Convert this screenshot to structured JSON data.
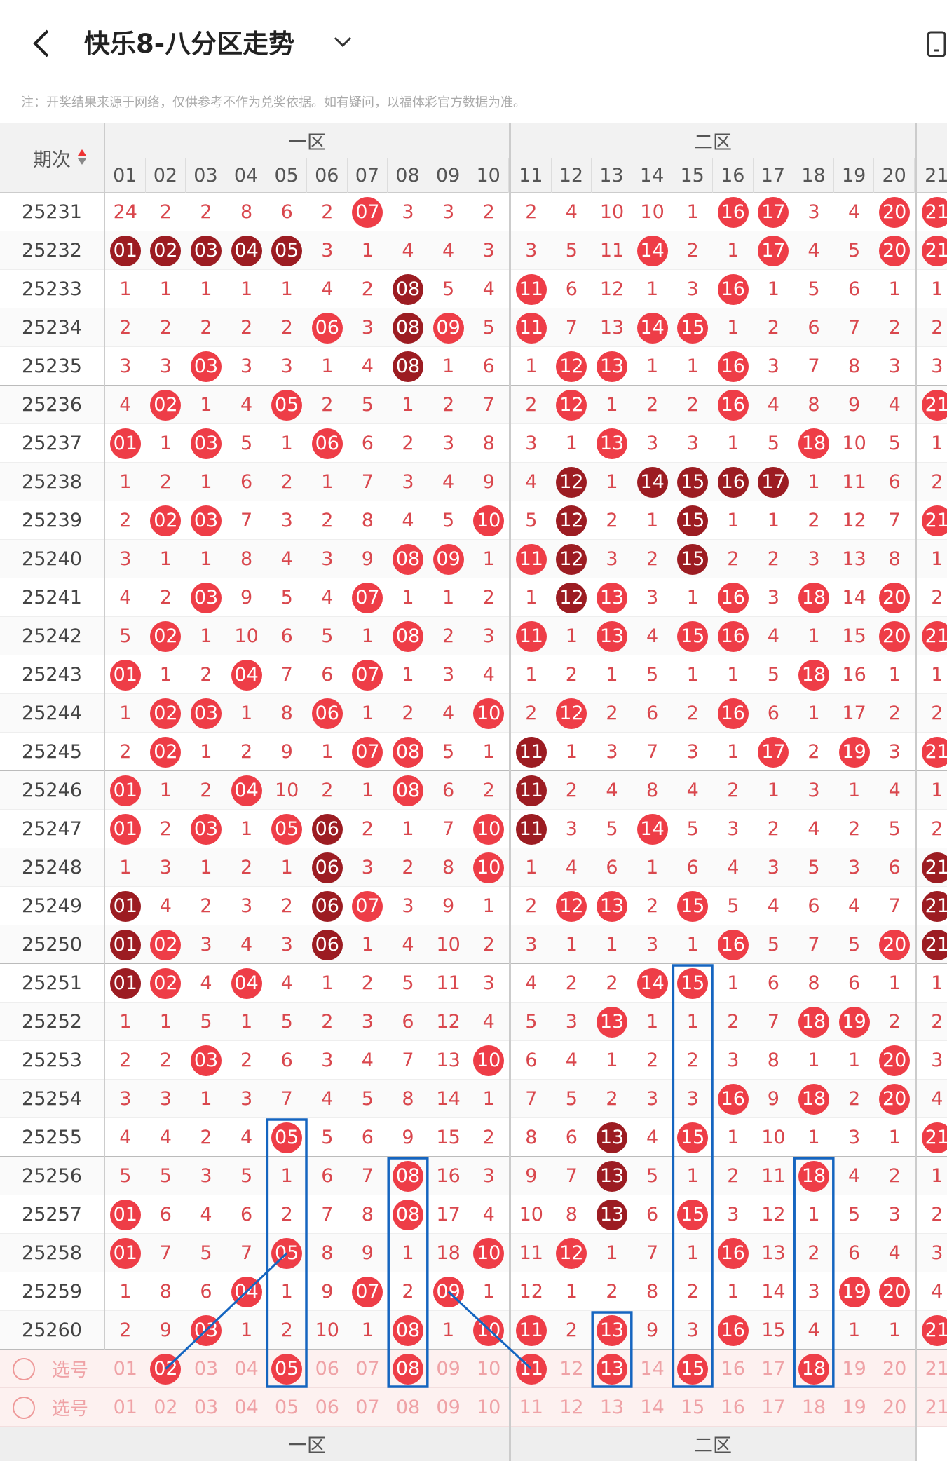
{
  "header": {
    "title": "快乐8-八分区走势",
    "note": "注：开奖结果来源于网络，仅供参考不作为兑奖依据。如有疑问，以福体彩官方数据为准。"
  },
  "table": {
    "period_label": "期次",
    "zones": [
      "一区",
      "二区"
    ],
    "numbers": [
      "01",
      "02",
      "03",
      "04",
      "05",
      "06",
      "07",
      "08",
      "09",
      "10",
      "11",
      "12",
      "13",
      "14",
      "15",
      "16",
      "17",
      "18",
      "19",
      "20",
      "21"
    ],
    "colors": {
      "hit": "#ee3d47",
      "dark": "#9c1c22",
      "miss": "#d9474d",
      "pick_text": "#efa2a6"
    },
    "rows": [
      {
        "period": "25231",
        "cells": [
          "24",
          "2",
          "2",
          "8",
          "6",
          "2",
          "07",
          "3",
          "3",
          "2",
          "2",
          "4",
          "10",
          "10",
          "1",
          "16",
          "17",
          "3",
          "4",
          "20",
          "21"
        ],
        "hit": [
          6,
          15,
          16,
          19,
          20
        ],
        "dark": []
      },
      {
        "period": "25232",
        "cells": [
          "01",
          "02",
          "03",
          "04",
          "05",
          "3",
          "1",
          "4",
          "4",
          "3",
          "3",
          "5",
          "11",
          "14",
          "2",
          "1",
          "17",
          "4",
          "5",
          "20",
          "21"
        ],
        "hit": [
          0,
          1,
          2,
          3,
          4,
          13,
          16,
          19,
          20
        ],
        "dark": [
          0,
          1,
          2,
          3,
          4
        ]
      },
      {
        "period": "25233",
        "cells": [
          "1",
          "1",
          "1",
          "1",
          "1",
          "4",
          "2",
          "08",
          "5",
          "4",
          "11",
          "6",
          "12",
          "1",
          "3",
          "16",
          "1",
          "5",
          "6",
          "1",
          "1"
        ],
        "hit": [
          7,
          10,
          15
        ],
        "dark": [
          7
        ]
      },
      {
        "period": "25234",
        "cells": [
          "2",
          "2",
          "2",
          "2",
          "2",
          "06",
          "3",
          "08",
          "09",
          "5",
          "11",
          "7",
          "13",
          "14",
          "15",
          "1",
          "2",
          "6",
          "7",
          "2",
          "2"
        ],
        "hit": [
          5,
          7,
          8,
          10,
          13,
          14
        ],
        "dark": [
          7
        ]
      },
      {
        "period": "25235",
        "cells": [
          "3",
          "3",
          "03",
          "3",
          "3",
          "1",
          "4",
          "08",
          "1",
          "6",
          "1",
          "12",
          "13",
          "1",
          "1",
          "16",
          "3",
          "7",
          "8",
          "3",
          "3"
        ],
        "hit": [
          2,
          7,
          11,
          12,
          15
        ],
        "dark": [
          7
        ]
      },
      {
        "period": "25236",
        "cells": [
          "4",
          "02",
          "1",
          "4",
          "05",
          "2",
          "5",
          "1",
          "2",
          "7",
          "2",
          "12",
          "1",
          "2",
          "2",
          "16",
          "4",
          "8",
          "9",
          "4",
          "21"
        ],
        "hit": [
          1,
          4,
          11,
          15,
          20
        ],
        "dark": []
      },
      {
        "period": "25237",
        "cells": [
          "01",
          "1",
          "03",
          "5",
          "1",
          "06",
          "6",
          "2",
          "3",
          "8",
          "3",
          "1",
          "13",
          "3",
          "3",
          "1",
          "5",
          "18",
          "10",
          "5",
          "1"
        ],
        "hit": [
          0,
          2,
          5,
          12,
          17
        ],
        "dark": []
      },
      {
        "period": "25238",
        "cells": [
          "1",
          "2",
          "1",
          "6",
          "2",
          "1",
          "7",
          "3",
          "4",
          "9",
          "4",
          "12",
          "1",
          "14",
          "15",
          "16",
          "17",
          "1",
          "11",
          "6",
          "2"
        ],
        "hit": [
          11,
          13,
          14,
          15,
          16
        ],
        "dark": [
          11,
          13,
          14,
          15,
          16
        ]
      },
      {
        "period": "25239",
        "cells": [
          "2",
          "02",
          "03",
          "7",
          "3",
          "2",
          "8",
          "4",
          "5",
          "10",
          "5",
          "12",
          "2",
          "1",
          "15",
          "1",
          "1",
          "2",
          "12",
          "7",
          "21"
        ],
        "hit": [
          1,
          2,
          9,
          11,
          14,
          20
        ],
        "dark": [
          11,
          14
        ]
      },
      {
        "period": "25240",
        "cells": [
          "3",
          "1",
          "1",
          "8",
          "4",
          "3",
          "9",
          "08",
          "09",
          "1",
          "11",
          "12",
          "3",
          "2",
          "15",
          "2",
          "2",
          "3",
          "13",
          "8",
          "1"
        ],
        "hit": [
          7,
          8,
          10,
          11,
          14
        ],
        "dark": [
          11,
          14
        ]
      },
      {
        "period": "25241",
        "cells": [
          "4",
          "2",
          "03",
          "9",
          "5",
          "4",
          "07",
          "1",
          "1",
          "2",
          "1",
          "12",
          "13",
          "3",
          "1",
          "16",
          "3",
          "18",
          "14",
          "20",
          "2"
        ],
        "hit": [
          2,
          6,
          11,
          12,
          15,
          17,
          19
        ],
        "dark": [
          11
        ]
      },
      {
        "period": "25242",
        "cells": [
          "5",
          "02",
          "1",
          "10",
          "6",
          "5",
          "1",
          "08",
          "2",
          "3",
          "11",
          "1",
          "13",
          "4",
          "15",
          "16",
          "4",
          "1",
          "15",
          "20",
          "21"
        ],
        "hit": [
          1,
          7,
          10,
          12,
          14,
          15,
          19,
          20
        ],
        "dark": []
      },
      {
        "period": "25243",
        "cells": [
          "01",
          "1",
          "2",
          "04",
          "7",
          "6",
          "07",
          "1",
          "3",
          "4",
          "1",
          "2",
          "1",
          "5",
          "1",
          "1",
          "5",
          "18",
          "16",
          "1",
          "1"
        ],
        "hit": [
          0,
          3,
          6,
          17
        ],
        "dark": []
      },
      {
        "period": "25244",
        "cells": [
          "1",
          "02",
          "03",
          "1",
          "8",
          "06",
          "1",
          "2",
          "4",
          "10",
          "2",
          "12",
          "2",
          "6",
          "2",
          "16",
          "6",
          "1",
          "17",
          "2",
          "2"
        ],
        "hit": [
          1,
          2,
          5,
          9,
          11,
          15
        ],
        "dark": []
      },
      {
        "period": "25245",
        "cells": [
          "2",
          "02",
          "1",
          "2",
          "9",
          "1",
          "07",
          "08",
          "5",
          "1",
          "11",
          "1",
          "3",
          "7",
          "3",
          "1",
          "17",
          "2",
          "19",
          "3",
          "21"
        ],
        "hit": [
          1,
          6,
          7,
          10,
          16,
          18,
          20
        ],
        "dark": [
          10
        ]
      },
      {
        "period": "25246",
        "cells": [
          "01",
          "1",
          "2",
          "04",
          "10",
          "2",
          "1",
          "08",
          "6",
          "2",
          "11",
          "2",
          "4",
          "8",
          "4",
          "2",
          "1",
          "3",
          "1",
          "4",
          "1"
        ],
        "hit": [
          0,
          3,
          7,
          10
        ],
        "dark": [
          10
        ]
      },
      {
        "period": "25247",
        "cells": [
          "01",
          "2",
          "03",
          "1",
          "05",
          "06",
          "2",
          "1",
          "7",
          "10",
          "11",
          "3",
          "5",
          "14",
          "5",
          "3",
          "2",
          "4",
          "2",
          "5",
          "2"
        ],
        "hit": [
          0,
          2,
          4,
          5,
          9,
          10,
          13
        ],
        "dark": [
          5,
          10
        ]
      },
      {
        "period": "25248",
        "cells": [
          "1",
          "3",
          "1",
          "2",
          "1",
          "06",
          "3",
          "2",
          "8",
          "10",
          "1",
          "4",
          "6",
          "1",
          "6",
          "4",
          "3",
          "5",
          "3",
          "6",
          "21"
        ],
        "hit": [
          5,
          9,
          20
        ],
        "dark": [
          5,
          20
        ]
      },
      {
        "period": "25249",
        "cells": [
          "01",
          "4",
          "2",
          "3",
          "2",
          "06",
          "07",
          "3",
          "9",
          "1",
          "2",
          "12",
          "13",
          "2",
          "15",
          "5",
          "4",
          "6",
          "4",
          "7",
          "21"
        ],
        "hit": [
          0,
          5,
          6,
          11,
          12,
          14,
          20
        ],
        "dark": [
          0,
          5,
          20
        ]
      },
      {
        "period": "25250",
        "cells": [
          "01",
          "02",
          "3",
          "4",
          "3",
          "06",
          "1",
          "4",
          "10",
          "2",
          "3",
          "1",
          "1",
          "3",
          "1",
          "16",
          "5",
          "7",
          "5",
          "20",
          "21"
        ],
        "hit": [
          0,
          1,
          5,
          15,
          19,
          20
        ],
        "dark": [
          0,
          5,
          20
        ]
      },
      {
        "period": "25251",
        "cells": [
          "01",
          "02",
          "4",
          "04",
          "4",
          "1",
          "2",
          "5",
          "11",
          "3",
          "4",
          "2",
          "2",
          "14",
          "15",
          "1",
          "6",
          "8",
          "6",
          "1",
          "1"
        ],
        "hit": [
          0,
          1,
          3,
          13,
          14
        ],
        "dark": [
          0
        ]
      },
      {
        "period": "25252",
        "cells": [
          "1",
          "1",
          "5",
          "1",
          "5",
          "2",
          "3",
          "6",
          "12",
          "4",
          "5",
          "3",
          "13",
          "1",
          "1",
          "2",
          "7",
          "18",
          "19",
          "2",
          "2"
        ],
        "hit": [
          12,
          17,
          18
        ],
        "dark": []
      },
      {
        "period": "25253",
        "cells": [
          "2",
          "2",
          "03",
          "2",
          "6",
          "3",
          "4",
          "7",
          "13",
          "10",
          "6",
          "4",
          "1",
          "2",
          "2",
          "3",
          "8",
          "1",
          "1",
          "20",
          "3"
        ],
        "hit": [
          2,
          9,
          19
        ],
        "dark": []
      },
      {
        "period": "25254",
        "cells": [
          "3",
          "3",
          "1",
          "3",
          "7",
          "4",
          "5",
          "8",
          "14",
          "1",
          "7",
          "5",
          "2",
          "3",
          "3",
          "16",
          "9",
          "18",
          "2",
          "20",
          "4"
        ],
        "hit": [
          15,
          17,
          19
        ],
        "dark": []
      },
      {
        "period": "25255",
        "cells": [
          "4",
          "4",
          "2",
          "4",
          "05",
          "5",
          "6",
          "9",
          "15",
          "2",
          "8",
          "6",
          "13",
          "4",
          "15",
          "1",
          "10",
          "1",
          "3",
          "1",
          "21"
        ],
        "hit": [
          4,
          12,
          14,
          20
        ],
        "dark": [
          12
        ]
      },
      {
        "period": "25256",
        "cells": [
          "5",
          "5",
          "3",
          "5",
          "1",
          "6",
          "7",
          "08",
          "16",
          "3",
          "9",
          "7",
          "13",
          "5",
          "1",
          "2",
          "11",
          "18",
          "4",
          "2",
          "1"
        ],
        "hit": [
          7,
          12,
          17
        ],
        "dark": [
          12
        ]
      },
      {
        "period": "25257",
        "cells": [
          "01",
          "6",
          "4",
          "6",
          "2",
          "7",
          "8",
          "08",
          "17",
          "4",
          "10",
          "8",
          "13",
          "6",
          "15",
          "3",
          "12",
          "1",
          "5",
          "3",
          "2"
        ],
        "hit": [
          0,
          7,
          12,
          14
        ],
        "dark": [
          12
        ]
      },
      {
        "period": "25258",
        "cells": [
          "01",
          "7",
          "5",
          "7",
          "05",
          "8",
          "9",
          "1",
          "18",
          "10",
          "11",
          "12",
          "1",
          "7",
          "1",
          "16",
          "13",
          "2",
          "6",
          "4",
          "3"
        ],
        "hit": [
          0,
          4,
          9,
          11,
          15
        ],
        "dark": []
      },
      {
        "period": "25259",
        "cells": [
          "1",
          "8",
          "6",
          "04",
          "1",
          "9",
          "07",
          "2",
          "09",
          "1",
          "12",
          "1",
          "2",
          "8",
          "2",
          "1",
          "14",
          "3",
          "19",
          "20",
          "4"
        ],
        "hit": [
          3,
          6,
          8,
          18,
          19
        ],
        "dark": []
      },
      {
        "period": "25260",
        "cells": [
          "2",
          "9",
          "03",
          "1",
          "2",
          "10",
          "1",
          "08",
          "1",
          "10",
          "11",
          "2",
          "13",
          "9",
          "3",
          "16",
          "15",
          "4",
          "1",
          "1",
          "21"
        ],
        "hit": [
          2,
          7,
          9,
          10,
          12,
          15,
          20
        ],
        "dark": []
      }
    ],
    "pick_label": "选号",
    "pick_rows": [
      {
        "picked": [
          1,
          4,
          7,
          10,
          12,
          14,
          17
        ]
      },
      {
        "picked": []
      }
    ]
  }
}
